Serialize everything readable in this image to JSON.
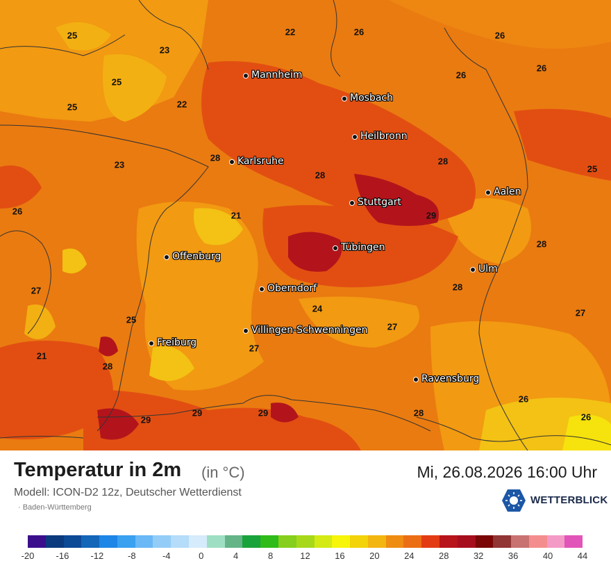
{
  "title": "Temperatur in 2m",
  "unit": "(in °C)",
  "datetime": "Mi, 26.08.2026 16:00 Uhr",
  "model": "Modell: ICON-D2 12z, Deutscher Wetterdienst",
  "region": "· Baden-Württemberg",
  "brand": "WETTERBLICK",
  "icons": {
    "logo": "sun-hex-icon",
    "city_marker": "dot-icon"
  },
  "cities": [
    "Mannheim",
    "Mosbach",
    "Heilbronn",
    "Karlsruhe",
    "Stuttgart",
    "Aalen",
    "Tübingen",
    "Offenburg",
    "Ulm",
    "Oberndorf",
    "Villingen-Schwenningen",
    "Freiburg",
    "Ravensburg"
  ],
  "values": [
    25,
    22,
    26,
    26,
    26,
    23,
    26,
    25,
    22,
    25,
    28,
    28,
    23,
    28,
    25,
    26,
    21,
    29,
    28,
    27,
    28,
    24,
    27,
    25,
    27,
    21,
    27,
    28,
    26,
    26,
    29,
    29,
    29,
    28
  ],
  "legend": {
    "ticks": [
      "-20",
      "-16",
      "-12",
      "-8",
      "-4",
      "0",
      "4",
      "8",
      "12",
      "16",
      "20",
      "24",
      "28",
      "32",
      "36",
      "40",
      "44"
    ],
    "colors": [
      "#3b0f8c",
      "#0b3a7e",
      "#0d4a96",
      "#1466b8",
      "#1e86e6",
      "#3aa0f0",
      "#6ab8f5",
      "#93cdf7",
      "#b5dcf9",
      "#d6ebfb",
      "#9edfc4",
      "#64b488",
      "#1aa33a",
      "#2fbb1a",
      "#86cf1c",
      "#a8d81a",
      "#d4ea14",
      "#f6f50a",
      "#f3d30a",
      "#f3b510",
      "#ef8c12",
      "#ec6e14",
      "#e33c14",
      "#b8141b",
      "#a60e1e",
      "#7a0606",
      "#923535",
      "#c87272",
      "#f48d8d",
      "#f49ac6",
      "#e155b8"
    ]
  }
}
